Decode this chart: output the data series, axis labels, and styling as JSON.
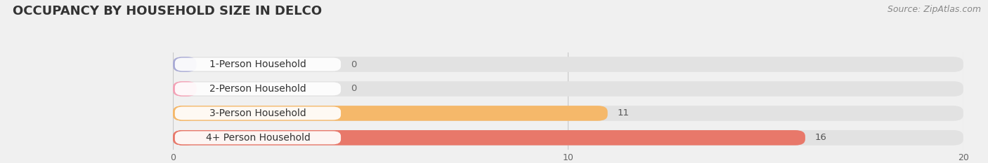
{
  "title": "OCCUPANCY BY HOUSEHOLD SIZE IN DELCO",
  "source": "Source: ZipAtlas.com",
  "categories": [
    "1-Person Household",
    "2-Person Household",
    "3-Person Household",
    "4+ Person Household"
  ],
  "values": [
    0,
    0,
    11,
    16
  ],
  "bar_colors": [
    "#a8aad5",
    "#f4a0b5",
    "#f5b86a",
    "#e8786a"
  ],
  "xlim": [
    0,
    20
  ],
  "xticks": [
    0,
    10,
    20
  ],
  "background_color": "#f0f0f0",
  "bar_bg_color": "#e2e2e2",
  "title_fontsize": 13,
  "source_fontsize": 9,
  "label_fontsize": 10,
  "value_fontsize": 9.5
}
